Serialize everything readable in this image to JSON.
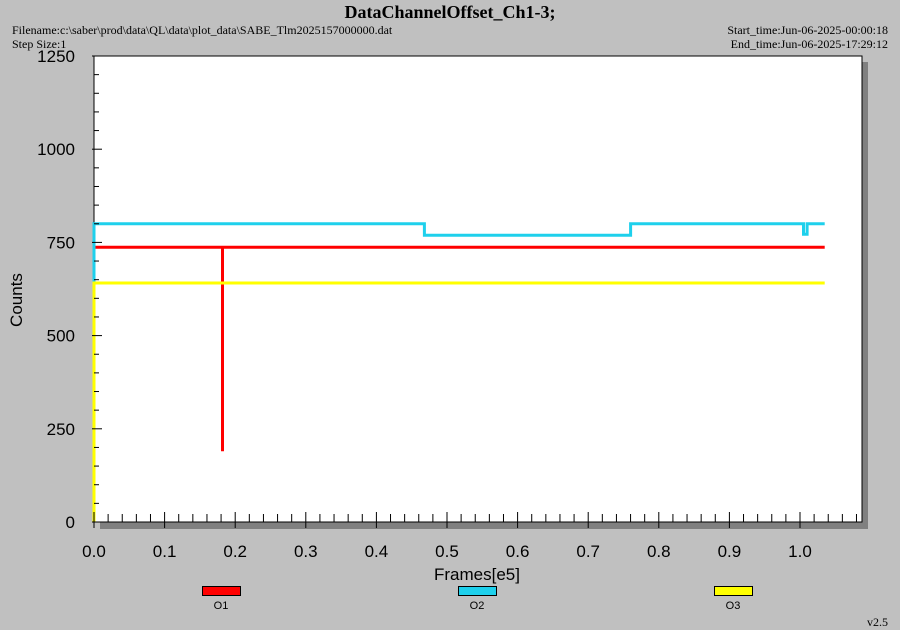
{
  "header": {
    "title": "DataChannelOffset_Ch1-3;",
    "filename": "Filename:c:\\saber\\prod\\data\\QL\\data\\plot_data\\SABE_Tlm2025157000000.dat",
    "step_size": "Step Size:1",
    "start_time": "Start_time:Jun-06-2025-00:00:18",
    "end_time": "End_time:Jun-06-2025-17:29:12"
  },
  "version": "v2.5",
  "chart_data": {
    "type": "line",
    "title": "DataChannelOffset_Ch1-3;",
    "xlabel": "Frames[e5]",
    "ylabel": "Counts",
    "xlim": [
      0.0,
      1.09
    ],
    "ylim": [
      0,
      1250
    ],
    "xticks": [
      0.0,
      0.1,
      0.2,
      0.3,
      0.4,
      0.5,
      0.6,
      0.7,
      0.8,
      0.9,
      1.0
    ],
    "xtick_labels": [
      "0.0",
      "0.1",
      "0.2",
      "0.3",
      "0.4",
      "0.5",
      "0.6",
      "0.7",
      "0.8",
      "0.9",
      "1.0"
    ],
    "yticks": [
      0,
      250,
      500,
      750,
      1000,
      1250
    ],
    "ytick_labels": [
      "0",
      "250",
      "500",
      "750",
      "1000",
      "1250"
    ],
    "grid": false,
    "legend_position": "bottom",
    "series": [
      {
        "name": "O1",
        "color": "#ff0000",
        "x": [
          0.0,
          0.182,
          0.182,
          0.182,
          1.035
        ],
        "y": [
          737,
          737,
          190,
          737,
          737
        ]
      },
      {
        "name": "O2",
        "color": "#1ed0ec",
        "x": [
          0.0,
          0.0,
          0.468,
          0.468,
          0.76,
          0.76,
          1.005,
          1.005,
          1.01,
          1.01,
          1.035
        ],
        "y": [
          640,
          800,
          800,
          769,
          769,
          800,
          800,
          772,
          772,
          800,
          800
        ]
      },
      {
        "name": "O3",
        "color": "#ffff00",
        "x": [
          0.0,
          0.0,
          1.035
        ],
        "y": [
          0,
          641,
          641
        ]
      }
    ]
  }
}
